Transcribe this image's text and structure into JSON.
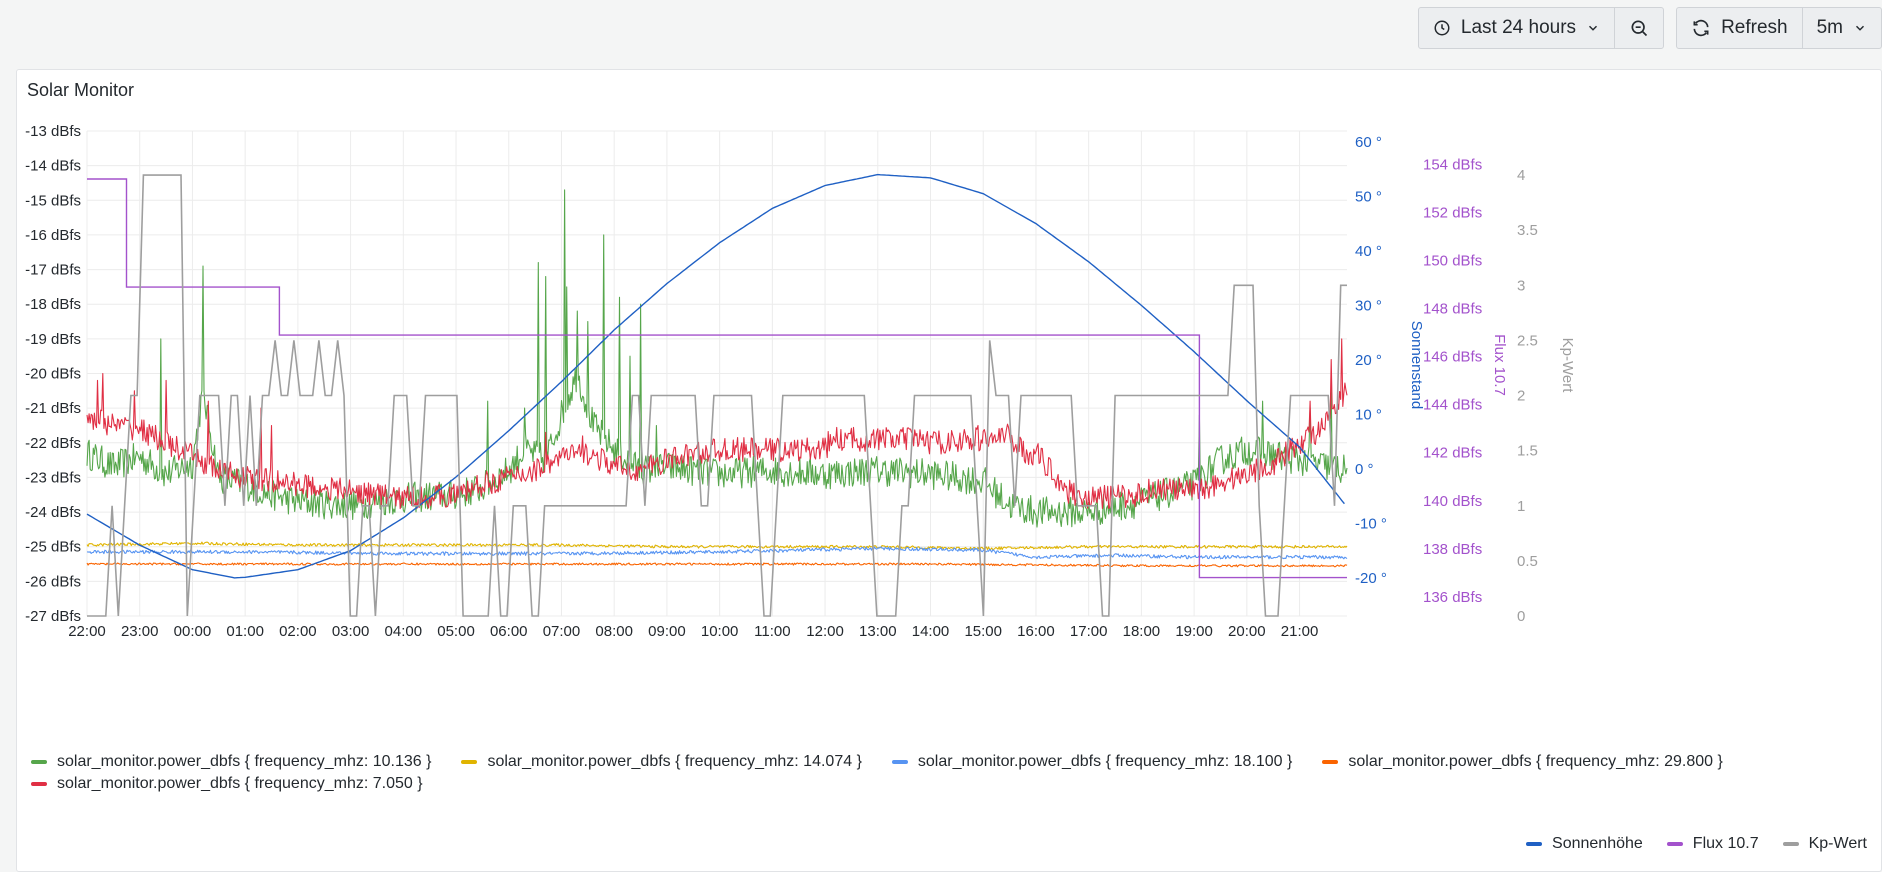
{
  "toolbar": {
    "time_range": "Last 24 hours",
    "refresh_label": "Refresh",
    "refresh_interval": "5m"
  },
  "panel": {
    "title": "Solar Monitor"
  },
  "legend": {
    "bottom": [
      {
        "label": "solar_monitor.power_dbfs { frequency_mhz: 10.136 }",
        "color": "#56a64b"
      },
      {
        "label": "solar_monitor.power_dbfs { frequency_mhz: 14.074 }",
        "color": "#e0b400"
      },
      {
        "label": "solar_monitor.power_dbfs { frequency_mhz: 18.100 }",
        "color": "#5794f2"
      },
      {
        "label": "solar_monitor.power_dbfs { frequency_mhz: 29.800 }",
        "color": "#fa6400"
      },
      {
        "label": "solar_monitor.power_dbfs { frequency_mhz: 7.050 }",
        "color": "#e02f44"
      }
    ],
    "right": [
      {
        "label": "Sonnenhöhe",
        "color": "#1f60c4"
      },
      {
        "label": "Flux 10.7",
        "color": "#a352cc"
      },
      {
        "label": "Kp-Wert",
        "color": "#9e9e9e"
      }
    ]
  },
  "chart_data": {
    "type": "line",
    "x_ticks": [
      "22:00",
      "23:00",
      "00:00",
      "01:00",
      "02:00",
      "03:00",
      "04:00",
      "05:00",
      "06:00",
      "07:00",
      "08:00",
      "09:00",
      "10:00",
      "11:00",
      "12:00",
      "13:00",
      "14:00",
      "15:00",
      "16:00",
      "17:00",
      "18:00",
      "19:00",
      "20:00",
      "21:00"
    ],
    "x_range_hours": [
      0,
      23.9
    ],
    "axes": {
      "left": {
        "ticks": [
          "-13 dBfs",
          "-14 dBfs",
          "-15 dBfs",
          "-16 dBfs",
          "-17 dBfs",
          "-18 dBfs",
          "-19 dBfs",
          "-20 dBfs",
          "-21 dBfs",
          "-22 dBfs",
          "-23 dBfs",
          "-24 dBfs",
          "-25 dBfs",
          "-26 dBfs",
          "-27 dBfs"
        ],
        "range": [
          -27,
          -13
        ]
      },
      "right1": {
        "label": "Sonnenstand",
        "ticks": [
          "60 °",
          "50 °",
          "40 °",
          "30 °",
          "20 °",
          "10 °",
          "0 °",
          "-10 °",
          "-20 °"
        ],
        "range": [
          -27,
          62
        ],
        "color": "#1f60c4"
      },
      "right2": {
        "label": "Flux 10.7",
        "ticks": [
          "154 dBfs",
          "152 dBfs",
          "150 dBfs",
          "148 dBfs",
          "146 dBfs",
          "144 dBfs",
          "142 dBfs",
          "140 dBfs",
          "138 dBfs",
          "136 dBfs"
        ],
        "range": [
          135.2,
          155.4
        ],
        "color": "#a352cc"
      },
      "right3": {
        "label": "Kp-Wert",
        "ticks": [
          "4",
          "3.5",
          "3",
          "2.5",
          "2",
          "1.5",
          "1",
          "0.5",
          "0"
        ],
        "range": [
          0,
          4.4
        ],
        "color": "#9e9e9e"
      }
    },
    "series": [
      {
        "name": "solar_monitor.power_dbfs { frequency_mhz: 10.136 }",
        "axis": "left",
        "color": "#56a64b",
        "noise": 0.45,
        "points": [
          [
            0,
            -22.3
          ],
          [
            0.5,
            -22.7
          ],
          [
            1,
            -22.4
          ],
          [
            1.5,
            -22.9
          ],
          [
            2,
            -22.6
          ],
          [
            2.2,
            -20.5
          ],
          [
            2.5,
            -23.0
          ],
          [
            3,
            -23.2
          ],
          [
            3.5,
            -23.5
          ],
          [
            4,
            -23.7
          ],
          [
            5,
            -23.8
          ],
          [
            6,
            -23.6
          ],
          [
            7,
            -23.5
          ],
          [
            7.5,
            -23.3
          ],
          [
            8,
            -22.8
          ],
          [
            8.3,
            -22.2
          ],
          [
            8.7,
            -22.5
          ],
          [
            9,
            -21.2
          ],
          [
            9.3,
            -20.0
          ],
          [
            9.6,
            -21.5
          ],
          [
            10,
            -22.2
          ],
          [
            10.5,
            -22.8
          ],
          [
            11,
            -22.7
          ],
          [
            11.5,
            -22.8
          ],
          [
            12,
            -22.9
          ],
          [
            13,
            -22.8
          ],
          [
            14,
            -22.9
          ],
          [
            15,
            -22.8
          ],
          [
            16,
            -22.9
          ],
          [
            17,
            -23.1
          ],
          [
            17.5,
            -23.8
          ],
          [
            18,
            -24.0
          ],
          [
            19,
            -24.0
          ],
          [
            20,
            -23.7
          ],
          [
            21,
            -23.2
          ],
          [
            21.5,
            -22.5
          ],
          [
            22,
            -22.2
          ],
          [
            23,
            -22.5
          ],
          [
            23.9,
            -22.8
          ]
        ],
        "spikes": [
          [
            2.2,
            -16.9
          ],
          [
            1.4,
            -19.0
          ],
          [
            7.6,
            -20.8
          ],
          [
            8.3,
            -21.0
          ],
          [
            8.55,
            -16.8
          ],
          [
            8.7,
            -17.2
          ],
          [
            9.05,
            -14.7
          ],
          [
            9.1,
            -17.5
          ],
          [
            9.3,
            -18.2
          ],
          [
            9.5,
            -18.5
          ],
          [
            9.8,
            -16.0
          ],
          [
            10.1,
            -17.8
          ],
          [
            10.3,
            -19.5
          ],
          [
            10.5,
            -18.0
          ],
          [
            10.8,
            -21.5
          ],
          [
            21.1,
            -21.2
          ],
          [
            22.3,
            -20.8
          ],
          [
            23.2,
            -21.0
          ],
          [
            23.6,
            -20.4
          ]
        ]
      },
      {
        "name": "solar_monitor.power_dbfs { frequency_mhz: 14.074 }",
        "axis": "left",
        "color": "#e0b400",
        "noise": 0.04,
        "points": [
          [
            0,
            -24.95
          ],
          [
            2,
            -24.9
          ],
          [
            4,
            -24.95
          ],
          [
            6,
            -24.95
          ],
          [
            9,
            -24.95
          ],
          [
            11,
            -25.0
          ],
          [
            13,
            -25.0
          ],
          [
            15,
            -25.0
          ],
          [
            17,
            -25.05
          ],
          [
            19,
            -25.0
          ],
          [
            21,
            -25.0
          ],
          [
            23.9,
            -25.0
          ]
        ]
      },
      {
        "name": "solar_monitor.power_dbfs { frequency_mhz: 18.100 }",
        "axis": "left",
        "color": "#5794f2",
        "noise": 0.05,
        "points": [
          [
            0,
            -25.15
          ],
          [
            3,
            -25.15
          ],
          [
            6,
            -25.2
          ],
          [
            9,
            -25.2
          ],
          [
            12,
            -25.15
          ],
          [
            15,
            -25.05
          ],
          [
            17,
            -25.1
          ],
          [
            18,
            -25.3
          ],
          [
            19.5,
            -25.25
          ],
          [
            21,
            -25.3
          ],
          [
            23.9,
            -25.3
          ]
        ]
      },
      {
        "name": "solar_monitor.power_dbfs { frequency_mhz: 29.800 }",
        "axis": "left",
        "color": "#fa6400",
        "noise": 0.03,
        "points": [
          [
            0,
            -25.5
          ],
          [
            4,
            -25.5
          ],
          [
            8,
            -25.5
          ],
          [
            12,
            -25.5
          ],
          [
            16,
            -25.5
          ],
          [
            20,
            -25.55
          ],
          [
            23.9,
            -25.55
          ]
        ]
      },
      {
        "name": "solar_monitor.power_dbfs { frequency_mhz: 7.050 }",
        "axis": "left",
        "color": "#e02f44",
        "noise": 0.35,
        "points": [
          [
            0,
            -21.2
          ],
          [
            0.5,
            -21.5
          ],
          [
            1,
            -21.6
          ],
          [
            1.5,
            -22.0
          ],
          [
            2,
            -22.4
          ],
          [
            2.5,
            -22.8
          ],
          [
            3,
            -23.0
          ],
          [
            3.5,
            -23.1
          ],
          [
            4,
            -23.2
          ],
          [
            5,
            -23.4
          ],
          [
            6,
            -23.6
          ],
          [
            7,
            -23.5
          ],
          [
            7.5,
            -23.2
          ],
          [
            8,
            -23.0
          ],
          [
            8.5,
            -22.8
          ],
          [
            9,
            -22.4
          ],
          [
            9.5,
            -22.3
          ],
          [
            10,
            -22.7
          ],
          [
            10.5,
            -22.8
          ],
          [
            11,
            -22.5
          ],
          [
            11.5,
            -22.3
          ],
          [
            12,
            -22.2
          ],
          [
            13,
            -22.2
          ],
          [
            14,
            -22.2
          ],
          [
            14.1,
            -21.9
          ],
          [
            15,
            -21.9
          ],
          [
            15.9,
            -21.9
          ],
          [
            16,
            -22.0
          ],
          [
            17,
            -21.9
          ],
          [
            17.5,
            -21.8
          ],
          [
            17.8,
            -22.3
          ],
          [
            18,
            -22.3
          ],
          [
            18.3,
            -22.8
          ],
          [
            18.6,
            -23.4
          ],
          [
            19,
            -23.6
          ],
          [
            20,
            -23.5
          ],
          [
            20.2,
            -23.3
          ],
          [
            21,
            -23.4
          ],
          [
            21.8,
            -23.0
          ],
          [
            22.5,
            -22.6
          ],
          [
            23,
            -22.0
          ],
          [
            23.5,
            -21.5
          ],
          [
            23.9,
            -20.5
          ]
        ],
        "spikes": [
          [
            0.2,
            -20.2
          ],
          [
            0.3,
            -20.0
          ],
          [
            0.9,
            -20.5
          ],
          [
            1.5,
            -20.2
          ],
          [
            2.3,
            -20.8
          ],
          [
            3.3,
            -21.0
          ],
          [
            3.5,
            -21.5
          ],
          [
            8.7,
            -21.7
          ],
          [
            9.4,
            -21.8
          ],
          [
            16.0,
            -21.8
          ],
          [
            16.9,
            -21.5
          ],
          [
            23.2,
            -20.8
          ],
          [
            23.6,
            -19.6
          ],
          [
            23.8,
            -19.0
          ]
        ]
      },
      {
        "name": "Sonnenhöhe",
        "axis": "right1",
        "color": "#1f60c4",
        "type": "curve",
        "points": [
          [
            0,
            -8.3
          ],
          [
            1,
            -14
          ],
          [
            2,
            -18.5
          ],
          [
            2.8,
            -20
          ],
          [
            3,
            -19.9
          ],
          [
            4,
            -18.5
          ],
          [
            5,
            -15
          ],
          [
            6,
            -9
          ],
          [
            7,
            -1.5
          ],
          [
            8,
            7
          ],
          [
            9,
            16
          ],
          [
            10,
            25.5
          ],
          [
            11,
            34
          ],
          [
            12,
            41.5
          ],
          [
            13,
            47.8
          ],
          [
            14,
            52
          ],
          [
            15,
            54
          ],
          [
            16,
            53.4
          ],
          [
            17,
            50.5
          ],
          [
            18,
            45
          ],
          [
            19,
            38
          ],
          [
            20,
            30
          ],
          [
            21,
            21.5
          ],
          [
            22,
            12.5
          ],
          [
            23,
            4
          ],
          [
            23.9,
            -7
          ]
        ]
      },
      {
        "name": "Flux 10.7",
        "axis": "right2",
        "color": "#a352cc",
        "type": "step",
        "points": [
          [
            0,
            153.4
          ],
          [
            0.75,
            153.4
          ],
          [
            0.75,
            148.9
          ],
          [
            3.65,
            148.9
          ],
          [
            3.65,
            146.9
          ],
          [
            21.1,
            146.9
          ],
          [
            21.1,
            136.8
          ],
          [
            23.9,
            136.8
          ]
        ]
      },
      {
        "name": "Kp-Wert",
        "axis": "right3",
        "color": "#9e9e9e",
        "type": "step",
        "values": [
          0.0,
          0.0,
          0.0,
          0.0,
          1.0,
          0.0,
          1.0,
          2.0,
          2.0,
          4.0,
          4.0,
          4.0,
          4.0,
          4.0,
          4.0,
          4.0,
          0.0,
          1.0,
          2.0,
          2.0,
          2.0,
          2.0,
          1.0,
          2.0,
          2.0,
          1.0,
          2.0,
          1.0,
          2.0,
          2.0,
          2.5,
          2.0,
          2.0,
          2.5,
          2.0,
          2.0,
          2.0,
          2.5,
          2.0,
          2.0,
          2.5,
          2.0,
          0.0,
          0.0,
          1.0,
          1.0,
          0.0,
          1.0,
          1.0,
          2.0,
          2.0,
          2.0,
          1.0,
          1.0,
          2.0,
          2.0,
          2.0,
          2.0,
          2.0,
          2.0,
          0.0,
          0.0,
          0.0,
          0.0,
          0.0,
          1.0,
          0.0,
          0.0,
          1.0,
          1.0,
          1.0,
          0.0,
          0.0,
          1.0,
          1.0,
          1.0,
          1.0,
          1.0,
          1.0,
          1.0,
          1.0,
          1.0,
          1.0,
          1.0,
          1.0,
          1.0,
          1.0,
          2.0,
          2.0,
          1.0,
          2.0,
          2.0,
          2.0,
          2.0,
          2.0,
          2.0,
          2.0,
          2.0,
          1.0,
          1.0,
          2.0,
          2.0,
          2.0,
          2.0,
          2.0,
          2.0,
          2.0,
          1.0,
          0.0,
          0.0,
          1.0,
          2.0,
          2.0,
          2.0,
          2.0,
          2.0,
          2.0,
          2.0,
          2.0,
          2.0,
          2.0,
          2.0,
          2.0,
          2.0,
          2.0,
          1.0,
          0.0,
          0.0,
          0.0,
          0.0,
          1.0,
          1.0,
          2.0,
          2.0,
          2.0,
          2.0,
          2.0,
          2.0,
          2.0,
          2.0,
          2.0,
          2.0,
          1.0,
          0.0,
          2.5,
          2.0,
          2.0,
          2.0,
          1.0,
          2.0,
          2.0,
          2.0,
          2.0,
          2.0,
          2.0,
          2.0,
          2.0,
          2.0,
          1.0,
          1.0,
          1.0,
          1.0,
          0.0,
          0.0,
          2.0,
          2.0,
          2.0,
          2.0,
          2.0,
          2.0,
          2.0,
          2.0,
          2.0,
          2.0,
          2.0,
          2.0,
          2.0,
          2.0,
          2.0,
          2.0,
          2.0,
          2.0,
          2.0,
          3.0,
          3.0,
          3.0,
          3.0,
          1.0,
          0.0,
          0.0,
          0.0,
          1.0,
          2.0,
          2.0,
          2.0,
          2.0,
          2.0,
          2.0,
          2.0,
          1.0,
          3.0,
          3.0
        ]
      }
    ]
  }
}
